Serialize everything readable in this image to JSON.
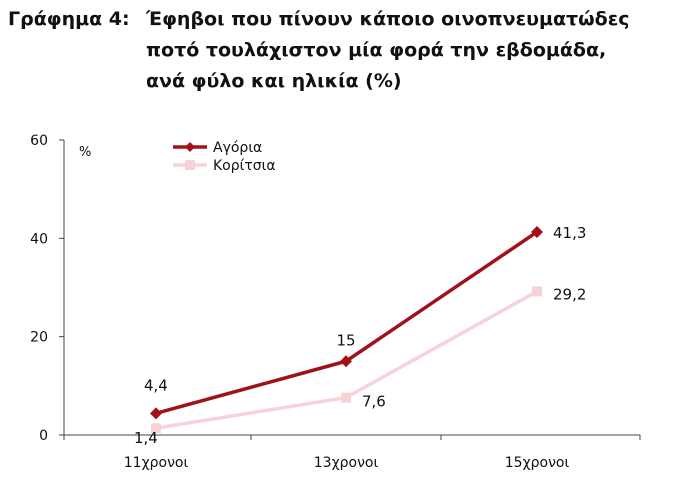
{
  "title": {
    "prefix": "Γράφημα 4:",
    "lines": [
      "Έφηβοι που πίνουν κάποιο οινοπνευματώδες",
      "ποτό τουλάχιστον μία φορά την εβδομάδα,",
      "ανά φύλο και ηλικία (%)"
    ]
  },
  "chart_data": {
    "type": "line",
    "title": "Έφηβοι που πίνουν κάποιο οινοπνευματώδες ποτό τουλάχιστον μία φορά την εβδομάδα, ανά φύλο και ηλικία (%)",
    "categories": [
      "11χρονοι",
      "13χρονοι",
      "15χρονοι"
    ],
    "ylabel": "%",
    "ylim": [
      0,
      60
    ],
    "yticks": [
      "0",
      "20",
      "40",
      "60"
    ],
    "grid": false,
    "legend_position": "top-left",
    "series": [
      {
        "name": "Αγόρια",
        "values": [
          4.4,
          15,
          41.3
        ],
        "labels": [
          "4,4",
          "15",
          "41,3"
        ],
        "color": "#a01218",
        "marker": "diamond"
      },
      {
        "name": "Κορίτσια",
        "values": [
          1.4,
          7.6,
          29.2
        ],
        "labels": [
          "1,4",
          "7,6",
          "29,2"
        ],
        "color": "#f7d3d8",
        "marker": "square"
      }
    ]
  }
}
